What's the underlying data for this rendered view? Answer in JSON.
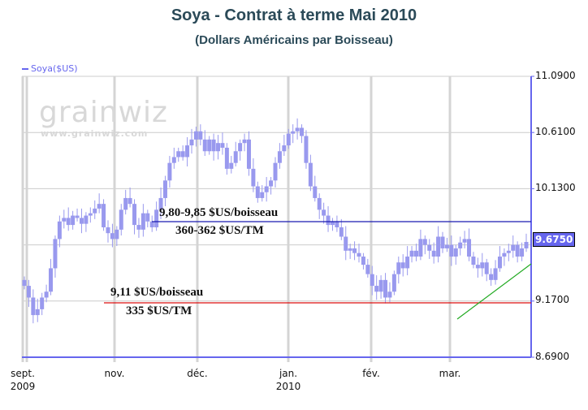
{
  "header": {
    "title": "Soya - Contrat à terme Mai 2010",
    "subtitle": "(Dollars Américains par Boisseau)"
  },
  "legend": {
    "label": "Soya($US)",
    "color": "#6666ee"
  },
  "watermark": {
    "logo": "grainwiz",
    "url": "www.grainwiz.com"
  },
  "last_price": "9.6750",
  "annotations": {
    "resistance_line1": "9,80-9,85 $US/boisseau",
    "resistance_line2": "360-362 $US/TM",
    "support_line1": "9,11 $US/boisseau",
    "support_line2": "335 $US/TM"
  },
  "colors": {
    "candle": "#9999ee",
    "axis": "#6666ee",
    "resistance": "#1a1ab0",
    "support": "#dd1111",
    "trend": "#22aa22",
    "grid": "#cccccc"
  },
  "chart_data": {
    "type": "candlestick",
    "title": "Soya - Contrat à terme Mai 2010",
    "subtitle": "(Dollars Américains par Boisseau)",
    "xlabel": "",
    "ylabel": "",
    "series_name": "Soya($US)",
    "y_axis_position": "right",
    "ylim": [
      8.69,
      11.09
    ],
    "yticks": [
      "11.0900",
      "10.6100",
      "10.1300",
      "9.1700",
      "8.6900"
    ],
    "xticks": [
      {
        "label": "sept.",
        "sub": "2009"
      },
      {
        "label": "nov.",
        "sub": ""
      },
      {
        "label": "déc.",
        "sub": ""
      },
      {
        "label": "jan.",
        "sub": "2010"
      },
      {
        "label": "fév.",
        "sub": ""
      },
      {
        "label": "mar.",
        "sub": ""
      }
    ],
    "grid": true,
    "last_value": 9.675,
    "horizontal_lines": [
      {
        "name": "resistance",
        "value": 9.82,
        "label": "9,80-9,85 $US/boisseau / 360-362 $US/TM",
        "color": "#1a1ab0"
      },
      {
        "name": "support",
        "value": 9.15,
        "label": "9,11 $US/boisseau / 335 $US/TM",
        "color": "#dd1111"
      }
    ],
    "trend_line": {
      "color": "#22aa22",
      "from": {
        "x": "early mar.",
        "y": 9.04
      },
      "to": {
        "x": "end mar.",
        "y": 9.52
      }
    },
    "approx_closes": [
      9.3,
      9.2,
      9.05,
      9.1,
      9.2,
      9.25,
      9.45,
      9.7,
      9.85,
      9.88,
      9.82,
      9.9,
      9.88,
      9.83,
      9.9,
      9.92,
      9.96,
      10.0,
      9.8,
      9.75,
      9.7,
      9.78,
      9.95,
      10.05,
      10.0,
      9.82,
      9.78,
      9.92,
      9.85,
      9.8,
      9.95,
      10.05,
      10.2,
      10.35,
      10.4,
      10.45,
      10.4,
      10.5,
      10.55,
      10.62,
      10.55,
      10.45,
      10.55,
      10.45,
      10.52,
      10.48,
      10.3,
      10.35,
      10.45,
      10.52,
      10.55,
      10.3,
      10.15,
      10.05,
      10.1,
      10.15,
      10.2,
      10.35,
      10.45,
      10.5,
      10.6,
      10.62,
      10.65,
      10.58,
      10.35,
      10.15,
      10.05,
      9.95,
      9.9,
      9.82,
      9.85,
      9.8,
      9.72,
      9.6,
      9.62,
      9.58,
      9.55,
      9.48,
      9.4,
      9.3,
      9.25,
      9.35,
      9.2,
      9.25,
      9.4,
      9.5,
      9.45,
      9.55,
      9.6,
      9.55,
      9.7,
      9.65,
      9.6,
      9.55,
      9.72,
      9.62,
      9.65,
      9.55,
      9.62,
      9.67,
      9.7,
      9.55,
      9.48,
      9.45,
      9.5,
      9.4,
      9.35,
      9.45,
      9.55,
      9.58,
      9.6,
      9.65,
      9.55,
      9.62,
      9.675
    ]
  }
}
